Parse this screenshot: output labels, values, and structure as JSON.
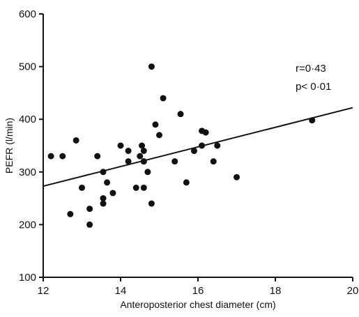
{
  "chart_data": {
    "type": "scatter",
    "title": "",
    "xlabel": "Anteroposterior chest diameter (cm)",
    "ylabel": "PEFR (l/min)",
    "xlim": [
      12,
      20
    ],
    "ylim": [
      100,
      600
    ],
    "x_ticks": [
      "12",
      "14",
      "16",
      "18",
      "20"
    ],
    "y_ticks": [
      "100",
      "200",
      "300",
      "400",
      "500",
      "600"
    ],
    "annotations": {
      "r_text": "r=0·43",
      "p_text": "p< 0·01"
    },
    "regression_line": {
      "x": [
        12,
        20
      ],
      "y": [
        273,
        422
      ]
    },
    "grid": false,
    "legend": "none",
    "marker_color": "#111111",
    "series": [
      {
        "x": [
          12.2,
          12.5,
          12.7,
          12.85,
          13.0,
          13.2,
          13.2,
          13.4,
          13.55,
          13.55,
          13.55,
          13.65,
          13.8,
          14.0,
          14.2,
          14.2,
          14.4,
          14.5,
          14.55,
          14.6,
          14.6,
          14.6,
          14.6,
          14.7,
          14.8,
          14.8,
          14.9,
          15.0,
          15.1,
          15.4,
          15.55,
          15.7,
          15.9,
          16.1,
          16.1,
          16.2,
          16.4,
          16.5,
          17.0,
          18.95
        ],
        "y": [
          330,
          330,
          220,
          360,
          270,
          230,
          200,
          330,
          300,
          250,
          240,
          280,
          260,
          350,
          340,
          320,
          270,
          330,
          350,
          320,
          340,
          270,
          320,
          300,
          500,
          240,
          390,
          370,
          440,
          320,
          410,
          280,
          340,
          378,
          350,
          375,
          320,
          350,
          290,
          398
        ]
      }
    ]
  }
}
